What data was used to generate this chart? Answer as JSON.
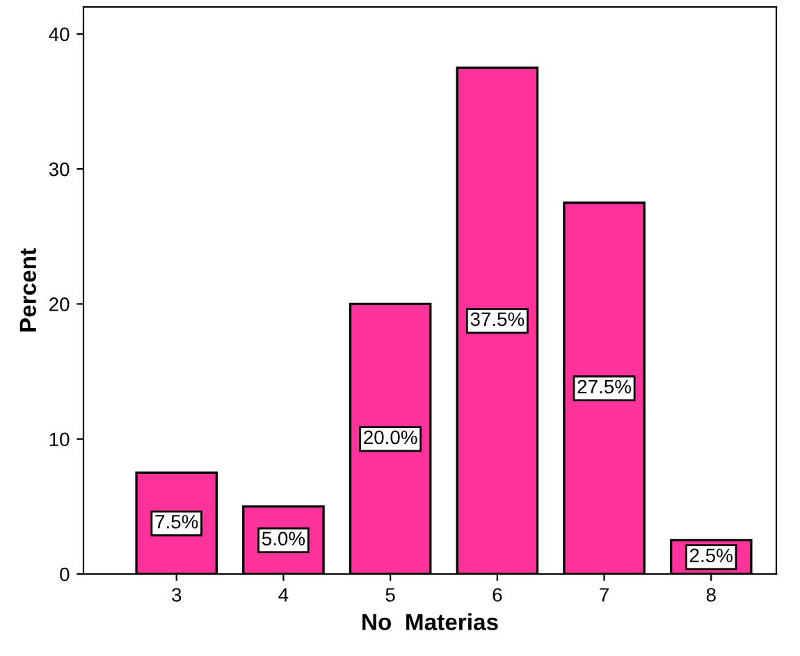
{
  "chart_data": {
    "type": "bar",
    "xlabel": "No  Materias",
    "ylabel": "Percent",
    "categories": [
      "3",
      "4",
      "5",
      "6",
      "7",
      "8"
    ],
    "values": [
      7.5,
      5.0,
      20.0,
      37.5,
      27.5,
      2.5
    ],
    "value_labels": [
      "7.5%",
      "5.0%",
      "20.0%",
      "37.5%",
      "27.5%",
      "2.5%"
    ],
    "color": "#ff3399",
    "ylim": [
      0,
      42
    ],
    "yticks": [
      0,
      10,
      20,
      30,
      40
    ],
    "grid": false,
    "legend": false
  }
}
